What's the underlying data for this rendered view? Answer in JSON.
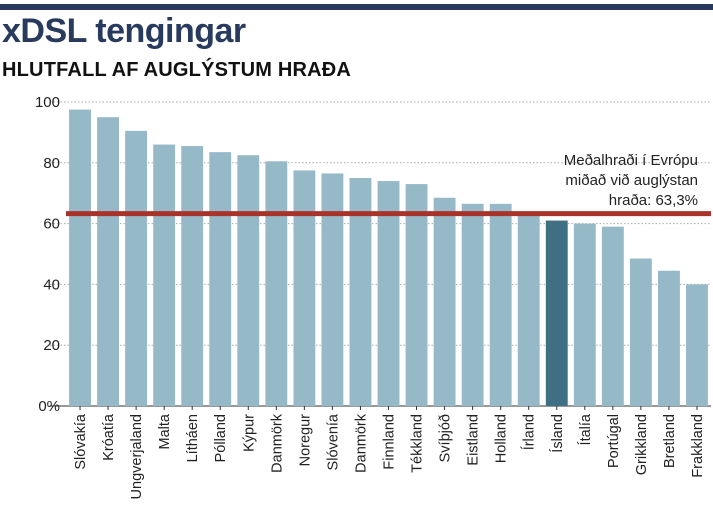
{
  "colors": {
    "top_bar": "#283a5e",
    "title": "#283a5e",
    "subtitle": "#111111",
    "bar": "#95b9c6",
    "bar_highlight": "#3f6f82",
    "average_line": "#a8332a",
    "grid": "#aaaaaa"
  },
  "chart_data": {
    "type": "bar",
    "title": "xDSL tengingar",
    "subtitle": "HLUTFALL AF AUGLÝSTUM HRAÐA",
    "categories": [
      "Slóvakía",
      "Króatía",
      "Ungverjaland",
      "Malta",
      "Lítháen",
      "Pólland",
      "Kýpur",
      "Danmörk",
      "Noregur",
      "Slóvenía",
      "Danmörk",
      "Finnland",
      "Tékkland",
      "Svíþjóð",
      "Eistland",
      "Holland",
      "Írland",
      "Ísland",
      "Ítalía",
      "Portúgal",
      "Grikkland",
      "Bretland",
      "Frakkland"
    ],
    "values": [
      97.5,
      95,
      90.5,
      86,
      85.5,
      83.5,
      82.5,
      80.5,
      77.5,
      76.5,
      75,
      74,
      73,
      68.5,
      66.5,
      66.5,
      62.5,
      61,
      60,
      59,
      48.5,
      44.5,
      40
    ],
    "highlight": "Ísland",
    "ylim": [
      0,
      100
    ],
    "yticks": [
      0,
      20,
      40,
      60,
      80,
      100
    ],
    "ytick_labels": [
      "0%",
      "20",
      "40",
      "60",
      "80",
      "100"
    ],
    "grid": true,
    "reference_line": {
      "value": 63.3,
      "label_lines": [
        "Meðalhraði í Evrópu",
        "miðað við auglýstan",
        "hraða: 63,3%"
      ]
    }
  }
}
